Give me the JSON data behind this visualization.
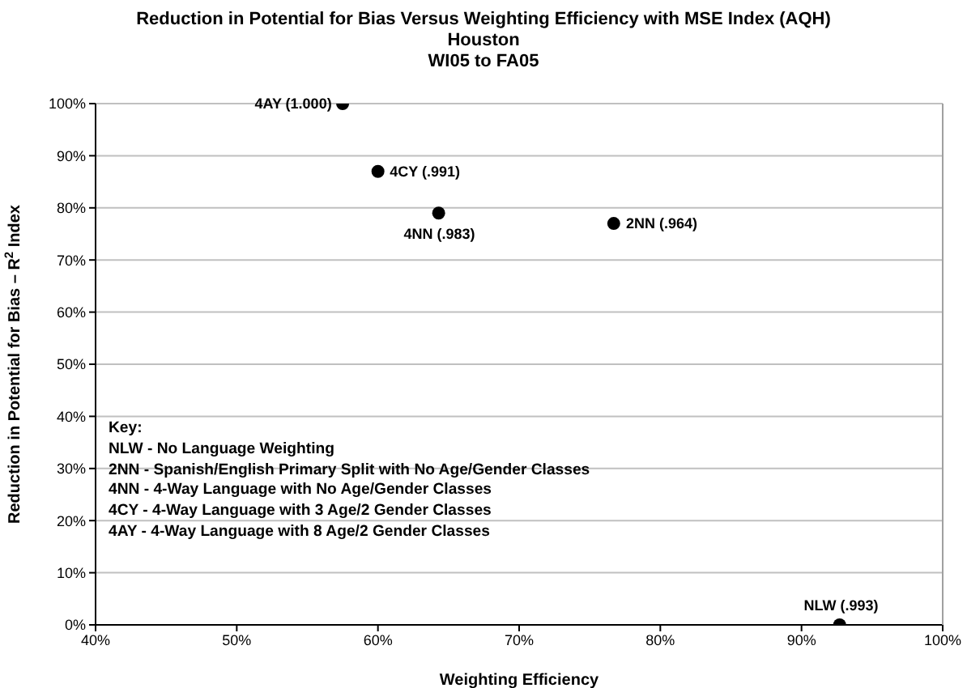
{
  "chart_data": {
    "type": "scatter",
    "title": "Reduction in Potential for Bias Versus Weighting Efficiency with MSE Index (AQH)",
    "subtitle": "Houston\nWI05 to FA05",
    "xlabel": "Weighting Efficiency",
    "ylabel": "Reduction in Potential for Bias – R$^{2}$ Index",
    "x": [
      57.5,
      60,
      64.3,
      76.7,
      92.7
    ],
    "series": [
      {
        "color": "#000000",
        "values": [
          100,
          87,
          79,
          77,
          0
        ]
      }
    ],
    "xlim": [
      40,
      100
    ],
    "xticks": [
      {
        "value": 40,
        "label": "40%"
      },
      {
        "value": 50,
        "label": "50%"
      },
      {
        "value": 60,
        "label": "60%"
      },
      {
        "value": 70,
        "label": "70%"
      },
      {
        "value": 80,
        "label": "80%"
      },
      {
        "value": 90,
        "label": "90%"
      },
      {
        "value": 100,
        "label": "100%"
      }
    ],
    "ylim": [
      0,
      100
    ],
    "yticks": [
      {
        "value": 0,
        "label": "0%"
      },
      {
        "value": 10,
        "label": "10%"
      },
      {
        "value": 20,
        "label": "20%"
      },
      {
        "value": 30,
        "label": "30%"
      },
      {
        "value": 40,
        "label": "40%"
      },
      {
        "value": 50,
        "label": "50%"
      },
      {
        "value": 60,
        "label": "60%"
      },
      {
        "value": 70,
        "label": "70%"
      },
      {
        "value": 80,
        "label": "80%"
      },
      {
        "value": 90,
        "label": "90%"
      },
      {
        "value": 100,
        "label": "100%"
      }
    ],
    "grid": "y",
    "legend": false,
    "marker": "circle",
    "annotations": [
      {
        "text": "4AY (1.000)",
        "x": 57.5,
        "y": 100
      },
      {
        "text": "4CY (.991)",
        "x": 60,
        "y": 87
      },
      {
        "text": "4NN (.983)",
        "x": 64.3,
        "y": 79
      },
      {
        "text": "2NN (.964)",
        "x": 76.7,
        "y": 77
      },
      {
        "text": "NLW (.993)",
        "x": 92.7,
        "y": 0
      },
      "Key:",
      "NLW - No Language Weighting",
      "2NN - Spanish/English Primary Split with No Age/Gender Classes",
      "4NN - 4-Way Language with No Age/Gender Classes",
      "4CY - 4-Way Language with 3 Age/2 Gender Classes",
      "4AY - 4-Way Language with 8 Age/2 Gender Classes"
    ]
  }
}
